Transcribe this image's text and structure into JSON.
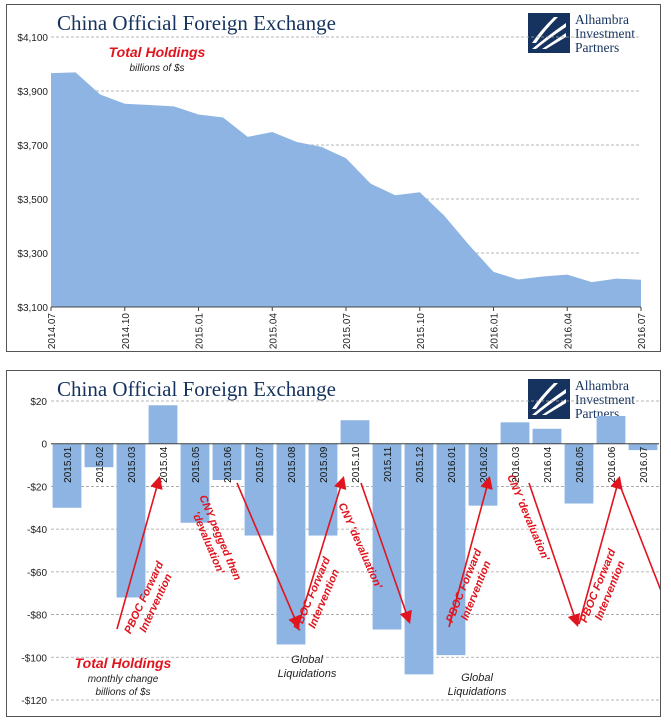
{
  "logo": {
    "line1": "Alhambra",
    "line2": "Investment",
    "line3": "Partners"
  },
  "colors": {
    "area": "#8db4e2",
    "bar": "#8db4e2",
    "annotation": "#e0141e",
    "title": "#16335f",
    "grid": "#a0a0a0"
  },
  "chart_data": [
    {
      "type": "area",
      "title": "China Official Foreign Exchange",
      "legend_title": "Total Holdings",
      "legend_subtitle": "billions of $s",
      "x": [
        "2014.07",
        "2014.08",
        "2014.09",
        "2014.10",
        "2014.11",
        "2014.12",
        "2015.01",
        "2015.02",
        "2015.03",
        "2015.04",
        "2015.05",
        "2015.06",
        "2015.07",
        "2015.08",
        "2015.09",
        "2015.10",
        "2015.11",
        "2015.12",
        "2016.01",
        "2016.02",
        "2016.03",
        "2016.04",
        "2016.05",
        "2016.06",
        "2016.07"
      ],
      "x_tick_labels": [
        "2014.07",
        "2014.10",
        "2015.01",
        "2015.04",
        "2015.07",
        "2015.10",
        "2016.01",
        "2016.04",
        "2016.07"
      ],
      "x_tick_indices": [
        0,
        3,
        6,
        9,
        12,
        15,
        18,
        21,
        24
      ],
      "values": [
        3966,
        3969,
        3887,
        3853,
        3848,
        3843,
        3813,
        3802,
        3730,
        3748,
        3711,
        3693,
        3651,
        3557,
        3514,
        3525,
        3438,
        3330,
        3230,
        3202,
        3213,
        3220,
        3192,
        3205,
        3201
      ],
      "ylim": [
        3100,
        4100
      ],
      "y_ticks": [
        3100,
        3300,
        3500,
        3700,
        3900,
        4100
      ],
      "y_tick_labels": [
        "$3,100",
        "$3,300",
        "$3,500",
        "$3,700",
        "$3,900",
        "$4,100"
      ],
      "grid": true
    },
    {
      "type": "bar",
      "title": "China Official Foreign Exchange",
      "legend_title": "Total Holdings",
      "legend_subtitle_1": "monthly change",
      "legend_subtitle_2": "billions of $s",
      "categories": [
        "2015.01",
        "2015.02",
        "2015.03",
        "2015.04",
        "2015.05",
        "2015.06",
        "2015.07",
        "2015.08",
        "2015.09",
        "2015.10",
        "2015.11",
        "2015.12",
        "2016.01",
        "2016.02",
        "2016.03",
        "2016.04",
        "2016.05",
        "2016.06",
        "2016.07"
      ],
      "values": [
        -30,
        -11,
        -72,
        18,
        -37,
        -17,
        -43,
        -94,
        -43,
        11,
        -87,
        -108,
        -99,
        -29,
        10,
        7,
        -28,
        13,
        -3
      ],
      "ylim": [
        -120,
        20
      ],
      "y_ticks": [
        20,
        0,
        -20,
        -40,
        -60,
        -80,
        -100,
        -120
      ],
      "y_tick_labels": [
        "$20",
        "0",
        "-$20",
        "-$40",
        "-$60",
        "-$80",
        "-$100",
        "-$120"
      ],
      "grid": true,
      "annotations": [
        {
          "lines": [
            "PBOC Forward",
            "Intervention"
          ]
        },
        {
          "lines": [
            "CNY pegged then",
            "'devaluation'"
          ]
        },
        {
          "lines": [
            "PBOC Forward",
            "Intervention"
          ]
        },
        {
          "lines": [
            "CNY 'devaluation'"
          ]
        },
        {
          "lines": [
            "PBOC Forward",
            "Intervention"
          ]
        },
        {
          "lines": [
            "CNY 'devaluation'"
          ]
        },
        {
          "lines": [
            "PBOC Forward",
            "Intervention"
          ]
        }
      ],
      "notes": [
        {
          "lines": [
            "Global",
            "Liquidations"
          ]
        },
        {
          "lines": [
            "Global",
            "Liquidations"
          ]
        }
      ]
    }
  ]
}
